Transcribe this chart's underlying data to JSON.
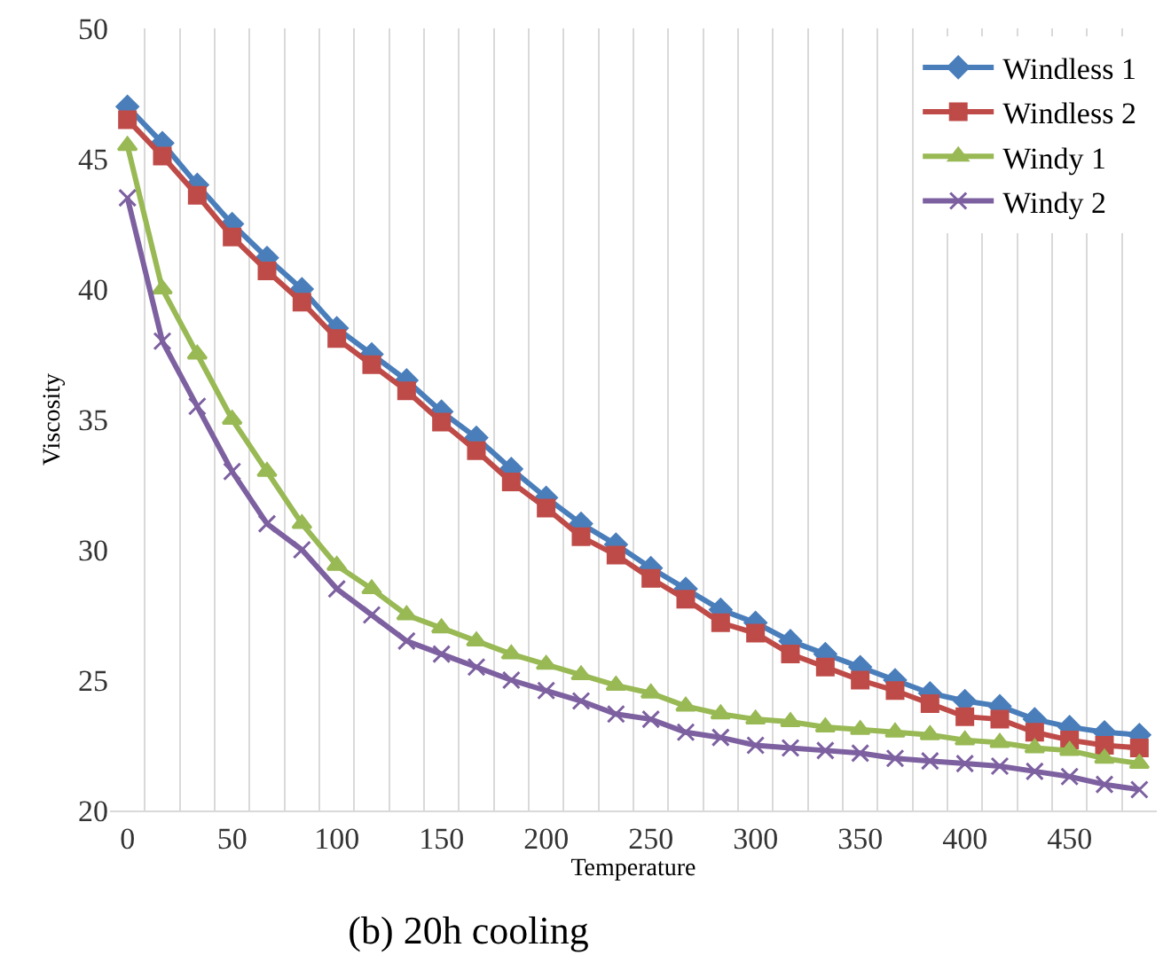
{
  "chart_data": {
    "type": "line",
    "title": "(b) 20h cooling",
    "xlabel": "Temperature",
    "ylabel": "Viscosity",
    "categories": [
      "0",
      null,
      null,
      "50",
      null,
      null,
      "100",
      null,
      null,
      "150",
      null,
      null,
      "200",
      null,
      null,
      "250",
      null,
      null,
      "300",
      null,
      null,
      "350",
      null,
      null,
      "400",
      null,
      null,
      "450",
      null,
      null
    ],
    "series": [
      {
        "name": "Windless 1",
        "color": "#4a7ebb",
        "marker": "diamond",
        "values": [
          47,
          45.6,
          44,
          42.5,
          41.2,
          40,
          38.5,
          37.5,
          36.5,
          35.3,
          34.3,
          33.1,
          32,
          31,
          30.2,
          29.3,
          28.5,
          27.7,
          27.2,
          26.5,
          26,
          25.5,
          25,
          24.5,
          24.2,
          24,
          23.5,
          23.2,
          23,
          22.9
        ]
      },
      {
        "name": "Windless 2",
        "color": "#be4b48",
        "marker": "square",
        "values": [
          46.5,
          45.1,
          43.6,
          42,
          40.7,
          39.5,
          38.1,
          37.1,
          36.1,
          34.9,
          33.8,
          32.6,
          31.6,
          30.5,
          29.8,
          28.9,
          28.1,
          27.2,
          26.8,
          26,
          25.5,
          25,
          24.6,
          24.1,
          23.6,
          23.5,
          23,
          22.7,
          22.5,
          22.4
        ]
      },
      {
        "name": "Windy 1",
        "color": "#98b954",
        "marker": "triangle",
        "values": [
          45.5,
          40,
          37.5,
          35,
          33,
          31,
          29.4,
          28.5,
          27.5,
          27,
          26.5,
          26,
          25.6,
          25.2,
          24.8,
          24.5,
          24,
          23.7,
          23.5,
          23.4,
          23.2,
          23.1,
          23,
          22.9,
          22.7,
          22.6,
          22.4,
          22.3,
          22,
          21.8
        ]
      },
      {
        "name": "Windy 2",
        "color": "#7d60a0",
        "marker": "cross",
        "values": [
          43.5,
          38,
          35.5,
          33,
          31,
          30,
          28.5,
          27.5,
          26.5,
          26,
          25.5,
          25,
          24.6,
          24.2,
          23.7,
          23.5,
          23,
          22.8,
          22.5,
          22.4,
          22.3,
          22.2,
          22,
          21.9,
          21.8,
          21.7,
          21.5,
          21.3,
          21,
          20.8
        ]
      }
    ],
    "ylim": [
      20,
      50
    ],
    "yticks": [
      20,
      25,
      30,
      35,
      40,
      45,
      50
    ],
    "grid": "x",
    "legend": "top right",
    "line_style": "solid"
  }
}
